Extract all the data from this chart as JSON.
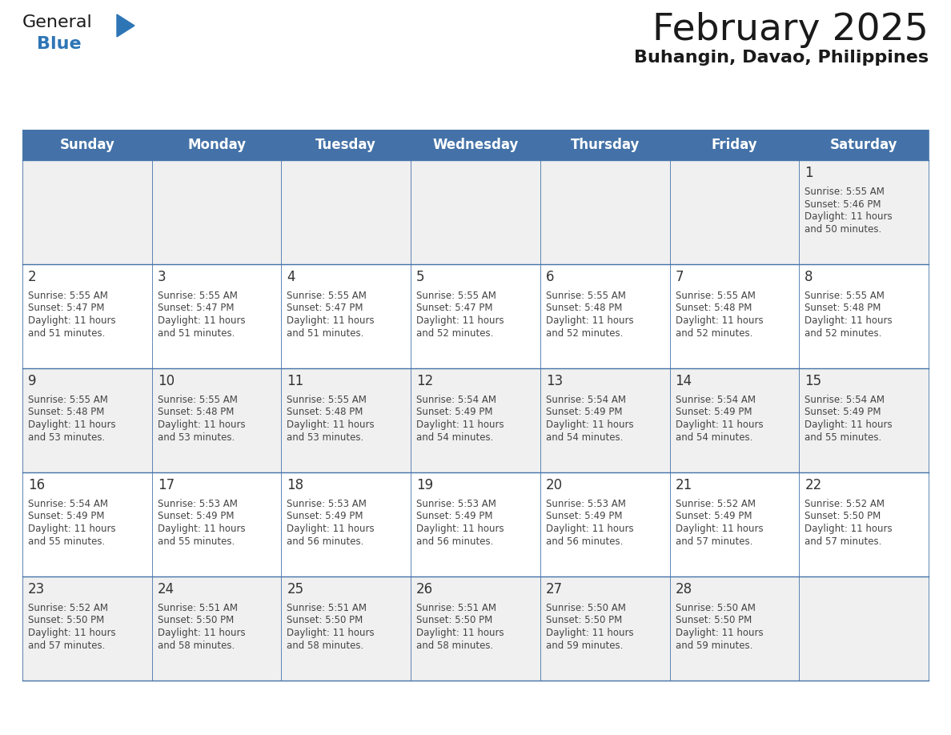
{
  "title": "February 2025",
  "subtitle": "Buhangin, Davao, Philippines",
  "header_color": "#4472a8",
  "header_text_color": "#ffffff",
  "day_names": [
    "Sunday",
    "Monday",
    "Tuesday",
    "Wednesday",
    "Thursday",
    "Friday",
    "Saturday"
  ],
  "alt_row_color": "#f0f0f0",
  "white_color": "#ffffff",
  "border_color": "#4472a8",
  "text_color": "#444444",
  "day_num_color": "#333333",
  "logo_general_color": "#1a1a1a",
  "logo_blue_color": "#2e75b6",
  "logo_triangle_color": "#2e75b6",
  "calendar_data": [
    [
      null,
      null,
      null,
      null,
      null,
      null,
      {
        "day": "1",
        "sunrise": "5:55 AM",
        "sunset": "5:46 PM",
        "daylight_line1": "Daylight: 11 hours",
        "daylight_line2": "and 50 minutes."
      }
    ],
    [
      {
        "day": "2",
        "sunrise": "5:55 AM",
        "sunset": "5:47 PM",
        "daylight_line1": "Daylight: 11 hours",
        "daylight_line2": "and 51 minutes."
      },
      {
        "day": "3",
        "sunrise": "5:55 AM",
        "sunset": "5:47 PM",
        "daylight_line1": "Daylight: 11 hours",
        "daylight_line2": "and 51 minutes."
      },
      {
        "day": "4",
        "sunrise": "5:55 AM",
        "sunset": "5:47 PM",
        "daylight_line1": "Daylight: 11 hours",
        "daylight_line2": "and 51 minutes."
      },
      {
        "day": "5",
        "sunrise": "5:55 AM",
        "sunset": "5:47 PM",
        "daylight_line1": "Daylight: 11 hours",
        "daylight_line2": "and 52 minutes."
      },
      {
        "day": "6",
        "sunrise": "5:55 AM",
        "sunset": "5:48 PM",
        "daylight_line1": "Daylight: 11 hours",
        "daylight_line2": "and 52 minutes."
      },
      {
        "day": "7",
        "sunrise": "5:55 AM",
        "sunset": "5:48 PM",
        "daylight_line1": "Daylight: 11 hours",
        "daylight_line2": "and 52 minutes."
      },
      {
        "day": "8",
        "sunrise": "5:55 AM",
        "sunset": "5:48 PM",
        "daylight_line1": "Daylight: 11 hours",
        "daylight_line2": "and 52 minutes."
      }
    ],
    [
      {
        "day": "9",
        "sunrise": "5:55 AM",
        "sunset": "5:48 PM",
        "daylight_line1": "Daylight: 11 hours",
        "daylight_line2": "and 53 minutes."
      },
      {
        "day": "10",
        "sunrise": "5:55 AM",
        "sunset": "5:48 PM",
        "daylight_line1": "Daylight: 11 hours",
        "daylight_line2": "and 53 minutes."
      },
      {
        "day": "11",
        "sunrise": "5:55 AM",
        "sunset": "5:48 PM",
        "daylight_line1": "Daylight: 11 hours",
        "daylight_line2": "and 53 minutes."
      },
      {
        "day": "12",
        "sunrise": "5:54 AM",
        "sunset": "5:49 PM",
        "daylight_line1": "Daylight: 11 hours",
        "daylight_line2": "and 54 minutes."
      },
      {
        "day": "13",
        "sunrise": "5:54 AM",
        "sunset": "5:49 PM",
        "daylight_line1": "Daylight: 11 hours",
        "daylight_line2": "and 54 minutes."
      },
      {
        "day": "14",
        "sunrise": "5:54 AM",
        "sunset": "5:49 PM",
        "daylight_line1": "Daylight: 11 hours",
        "daylight_line2": "and 54 minutes."
      },
      {
        "day": "15",
        "sunrise": "5:54 AM",
        "sunset": "5:49 PM",
        "daylight_line1": "Daylight: 11 hours",
        "daylight_line2": "and 55 minutes."
      }
    ],
    [
      {
        "day": "16",
        "sunrise": "5:54 AM",
        "sunset": "5:49 PM",
        "daylight_line1": "Daylight: 11 hours",
        "daylight_line2": "and 55 minutes."
      },
      {
        "day": "17",
        "sunrise": "5:53 AM",
        "sunset": "5:49 PM",
        "daylight_line1": "Daylight: 11 hours",
        "daylight_line2": "and 55 minutes."
      },
      {
        "day": "18",
        "sunrise": "5:53 AM",
        "sunset": "5:49 PM",
        "daylight_line1": "Daylight: 11 hours",
        "daylight_line2": "and 56 minutes."
      },
      {
        "day": "19",
        "sunrise": "5:53 AM",
        "sunset": "5:49 PM",
        "daylight_line1": "Daylight: 11 hours",
        "daylight_line2": "and 56 minutes."
      },
      {
        "day": "20",
        "sunrise": "5:53 AM",
        "sunset": "5:49 PM",
        "daylight_line1": "Daylight: 11 hours",
        "daylight_line2": "and 56 minutes."
      },
      {
        "day": "21",
        "sunrise": "5:52 AM",
        "sunset": "5:49 PM",
        "daylight_line1": "Daylight: 11 hours",
        "daylight_line2": "and 57 minutes."
      },
      {
        "day": "22",
        "sunrise": "5:52 AM",
        "sunset": "5:50 PM",
        "daylight_line1": "Daylight: 11 hours",
        "daylight_line2": "and 57 minutes."
      }
    ],
    [
      {
        "day": "23",
        "sunrise": "5:52 AM",
        "sunset": "5:50 PM",
        "daylight_line1": "Daylight: 11 hours",
        "daylight_line2": "and 57 minutes."
      },
      {
        "day": "24",
        "sunrise": "5:51 AM",
        "sunset": "5:50 PM",
        "daylight_line1": "Daylight: 11 hours",
        "daylight_line2": "and 58 minutes."
      },
      {
        "day": "25",
        "sunrise": "5:51 AM",
        "sunset": "5:50 PM",
        "daylight_line1": "Daylight: 11 hours",
        "daylight_line2": "and 58 minutes."
      },
      {
        "day": "26",
        "sunrise": "5:51 AM",
        "sunset": "5:50 PM",
        "daylight_line1": "Daylight: 11 hours",
        "daylight_line2": "and 58 minutes."
      },
      {
        "day": "27",
        "sunrise": "5:50 AM",
        "sunset": "5:50 PM",
        "daylight_line1": "Daylight: 11 hours",
        "daylight_line2": "and 59 minutes."
      },
      {
        "day": "28",
        "sunrise": "5:50 AM",
        "sunset": "5:50 PM",
        "daylight_line1": "Daylight: 11 hours",
        "daylight_line2": "and 59 minutes."
      },
      null
    ]
  ]
}
